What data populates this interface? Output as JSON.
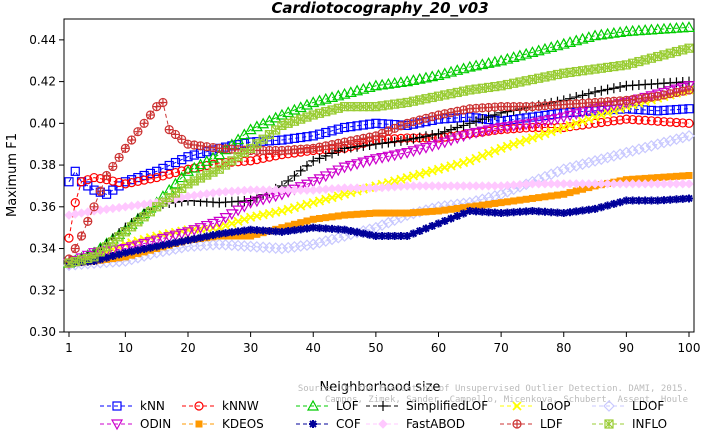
{
  "chart_data": {
    "type": "line",
    "title": "Cardiotocography_20_v03",
    "xlabel": "Neighborhood size",
    "ylabel": "Maximum F1",
    "xlim": [
      1,
      100
    ],
    "ylim": [
      0.3,
      0.45
    ],
    "xticks": [
      1,
      10,
      20,
      30,
      40,
      50,
      60,
      70,
      80,
      90,
      100
    ],
    "yticks": [
      0.3,
      0.32,
      0.34,
      0.36,
      0.38,
      0.4,
      0.42,
      0.44
    ],
    "ytick_labels": [
      "0.30",
      "0.32",
      "0.34",
      "0.36",
      "0.38",
      "0.40",
      "0.42",
      "0.44"
    ],
    "grid": false,
    "legend_position": "bottom",
    "watermark": [
      "Source: On the Evaluation of Unsupervised Outlier Detection. DAMI, 2015.",
      "Campos, Zimek, Sander, Campello, Micenkova, Schubert, Assent, Houle"
    ],
    "series": [
      {
        "name": "kNN",
        "color": "#0000ff",
        "marker": "square",
        "points": [
          [
            1,
            0.372
          ],
          [
            2,
            0.377
          ],
          [
            3,
            0.372
          ],
          [
            5,
            0.368
          ],
          [
            7,
            0.366
          ],
          [
            10,
            0.372
          ],
          [
            15,
            0.377
          ],
          [
            20,
            0.384
          ],
          [
            25,
            0.388
          ],
          [
            30,
            0.391
          ],
          [
            35,
            0.392
          ],
          [
            40,
            0.394
          ],
          [
            45,
            0.398
          ],
          [
            50,
            0.4
          ],
          [
            55,
            0.399
          ],
          [
            60,
            0.402
          ],
          [
            65,
            0.403
          ],
          [
            70,
            0.401
          ],
          [
            75,
            0.403
          ],
          [
            80,
            0.405
          ],
          [
            85,
            0.406
          ],
          [
            90,
            0.407
          ],
          [
            95,
            0.406
          ],
          [
            100,
            0.407
          ]
        ]
      },
      {
        "name": "kNNW",
        "color": "#ff0000",
        "marker": "circle",
        "points": [
          [
            1,
            0.345
          ],
          [
            2,
            0.362
          ],
          [
            3,
            0.372
          ],
          [
            5,
            0.374
          ],
          [
            7,
            0.373
          ],
          [
            10,
            0.371
          ],
          [
            15,
            0.374
          ],
          [
            20,
            0.378
          ],
          [
            25,
            0.381
          ],
          [
            30,
            0.382
          ],
          [
            35,
            0.385
          ],
          [
            40,
            0.387
          ],
          [
            45,
            0.388
          ],
          [
            50,
            0.392
          ],
          [
            55,
            0.393
          ],
          [
            60,
            0.393
          ],
          [
            65,
            0.395
          ],
          [
            70,
            0.397
          ],
          [
            75,
            0.398
          ],
          [
            80,
            0.398
          ],
          [
            85,
            0.4
          ],
          [
            90,
            0.402
          ],
          [
            95,
            0.401
          ],
          [
            100,
            0.4
          ]
        ]
      },
      {
        "name": "LOF",
        "color": "#00cc00",
        "marker": "triangle-up",
        "points": [
          [
            1,
            0.333
          ],
          [
            5,
            0.338
          ],
          [
            10,
            0.349
          ],
          [
            15,
            0.362
          ],
          [
            20,
            0.377
          ],
          [
            25,
            0.385
          ],
          [
            30,
            0.397
          ],
          [
            35,
            0.404
          ],
          [
            40,
            0.41
          ],
          [
            45,
            0.414
          ],
          [
            50,
            0.418
          ],
          [
            55,
            0.42
          ],
          [
            60,
            0.423
          ],
          [
            65,
            0.427
          ],
          [
            70,
            0.43
          ],
          [
            75,
            0.434
          ],
          [
            80,
            0.438
          ],
          [
            85,
            0.442
          ],
          [
            90,
            0.444
          ],
          [
            95,
            0.445
          ],
          [
            100,
            0.446
          ]
        ]
      },
      {
        "name": "SimplifiedLOF",
        "color": "#000000",
        "marker": "plus",
        "points": [
          [
            1,
            0.333
          ],
          [
            5,
            0.337
          ],
          [
            10,
            0.35
          ],
          [
            15,
            0.361
          ],
          [
            20,
            0.363
          ],
          [
            25,
            0.362
          ],
          [
            30,
            0.363
          ],
          [
            35,
            0.37
          ],
          [
            40,
            0.382
          ],
          [
            45,
            0.388
          ],
          [
            50,
            0.39
          ],
          [
            55,
            0.392
          ],
          [
            60,
            0.395
          ],
          [
            65,
            0.4
          ],
          [
            70,
            0.405
          ],
          [
            75,
            0.408
          ],
          [
            80,
            0.411
          ],
          [
            85,
            0.415
          ],
          [
            90,
            0.418
          ],
          [
            95,
            0.419
          ],
          [
            100,
            0.42
          ]
        ]
      },
      {
        "name": "LoOP",
        "color": "#ffff00",
        "marker": "cross",
        "points": [
          [
            1,
            0.333
          ],
          [
            5,
            0.336
          ],
          [
            10,
            0.342
          ],
          [
            15,
            0.346
          ],
          [
            20,
            0.349
          ],
          [
            25,
            0.35
          ],
          [
            30,
            0.355
          ],
          [
            35,
            0.358
          ],
          [
            40,
            0.362
          ],
          [
            45,
            0.366
          ],
          [
            50,
            0.37
          ],
          [
            55,
            0.374
          ],
          [
            60,
            0.378
          ],
          [
            65,
            0.382
          ],
          [
            70,
            0.388
          ],
          [
            75,
            0.393
          ],
          [
            80,
            0.398
          ],
          [
            85,
            0.403
          ],
          [
            90,
            0.408
          ],
          [
            95,
            0.412
          ],
          [
            100,
            0.416
          ]
        ]
      },
      {
        "name": "LDOF",
        "color": "#c8c8ff",
        "marker": "diamond",
        "points": [
          [
            1,
            0.332
          ],
          [
            5,
            0.333
          ],
          [
            10,
            0.334
          ],
          [
            15,
            0.338
          ],
          [
            20,
            0.341
          ],
          [
            25,
            0.342
          ],
          [
            30,
            0.341
          ],
          [
            35,
            0.34
          ],
          [
            40,
            0.342
          ],
          [
            45,
            0.346
          ],
          [
            50,
            0.35
          ],
          [
            55,
            0.356
          ],
          [
            60,
            0.36
          ],
          [
            65,
            0.362
          ],
          [
            70,
            0.366
          ],
          [
            75,
            0.372
          ],
          [
            80,
            0.378
          ],
          [
            85,
            0.382
          ],
          [
            90,
            0.386
          ],
          [
            95,
            0.39
          ],
          [
            100,
            0.394
          ]
        ]
      },
      {
        "name": "ODIN",
        "color": "#cc00cc",
        "marker": "triangle-down",
        "points": [
          [
            1,
            0.333
          ],
          [
            5,
            0.338
          ],
          [
            10,
            0.34
          ],
          [
            15,
            0.344
          ],
          [
            20,
            0.348
          ],
          [
            25,
            0.353
          ],
          [
            30,
            0.362
          ],
          [
            35,
            0.366
          ],
          [
            40,
            0.372
          ],
          [
            45,
            0.379
          ],
          [
            50,
            0.383
          ],
          [
            55,
            0.386
          ],
          [
            60,
            0.39
          ],
          [
            65,
            0.395
          ],
          [
            70,
            0.398
          ],
          [
            75,
            0.4
          ],
          [
            80,
            0.403
          ],
          [
            85,
            0.407
          ],
          [
            90,
            0.41
          ],
          [
            95,
            0.414
          ],
          [
            100,
            0.418
          ]
        ]
      },
      {
        "name": "KDEOS",
        "color": "#ff9900",
        "marker": "box-square",
        "points": [
          [
            1,
            0.333
          ],
          [
            5,
            0.334
          ],
          [
            10,
            0.336
          ],
          [
            15,
            0.34
          ],
          [
            20,
            0.344
          ],
          [
            25,
            0.346
          ],
          [
            30,
            0.346
          ],
          [
            35,
            0.35
          ],
          [
            40,
            0.354
          ],
          [
            45,
            0.356
          ],
          [
            50,
            0.357
          ],
          [
            55,
            0.357
          ],
          [
            60,
            0.358
          ],
          [
            65,
            0.36
          ],
          [
            70,
            0.362
          ],
          [
            75,
            0.364
          ],
          [
            80,
            0.366
          ],
          [
            85,
            0.37
          ],
          [
            90,
            0.373
          ],
          [
            95,
            0.374
          ],
          [
            100,
            0.375
          ]
        ]
      },
      {
        "name": "COF",
        "color": "#000099",
        "marker": "asterisk",
        "points": [
          [
            1,
            0.333
          ],
          [
            5,
            0.334
          ],
          [
            10,
            0.338
          ],
          [
            15,
            0.341
          ],
          [
            20,
            0.344
          ],
          [
            25,
            0.347
          ],
          [
            30,
            0.349
          ],
          [
            35,
            0.348
          ],
          [
            40,
            0.35
          ],
          [
            45,
            0.349
          ],
          [
            50,
            0.346
          ],
          [
            55,
            0.346
          ],
          [
            60,
            0.352
          ],
          [
            65,
            0.358
          ],
          [
            70,
            0.357
          ],
          [
            75,
            0.358
          ],
          [
            80,
            0.357
          ],
          [
            85,
            0.359
          ],
          [
            90,
            0.363
          ],
          [
            95,
            0.363
          ],
          [
            100,
            0.364
          ]
        ]
      },
      {
        "name": "FastABOD",
        "color": "#ffc8ff",
        "marker": "diamond-filled",
        "points": [
          [
            1,
            0.356
          ],
          [
            5,
            0.358
          ],
          [
            10,
            0.36
          ],
          [
            15,
            0.362
          ],
          [
            20,
            0.365
          ],
          [
            25,
            0.367
          ],
          [
            30,
            0.368
          ],
          [
            35,
            0.368
          ],
          [
            40,
            0.368
          ],
          [
            45,
            0.369
          ],
          [
            50,
            0.369
          ],
          [
            55,
            0.37
          ],
          [
            60,
            0.37
          ],
          [
            65,
            0.37
          ],
          [
            70,
            0.37
          ],
          [
            75,
            0.371
          ],
          [
            80,
            0.371
          ],
          [
            85,
            0.371
          ],
          [
            90,
            0.371
          ],
          [
            95,
            0.371
          ],
          [
            100,
            0.371
          ]
        ]
      },
      {
        "name": "LDF",
        "color": "#cc3333",
        "marker": "circle-plus",
        "points": [
          [
            1,
            0.335
          ],
          [
            2,
            0.34
          ],
          [
            3,
            0.346
          ],
          [
            5,
            0.36
          ],
          [
            7,
            0.375
          ],
          [
            10,
            0.388
          ],
          [
            12,
            0.396
          ],
          [
            13,
            0.4
          ],
          [
            15,
            0.408
          ],
          [
            16,
            0.41
          ],
          [
            17,
            0.397
          ],
          [
            20,
            0.39
          ],
          [
            25,
            0.388
          ],
          [
            30,
            0.387
          ],
          [
            35,
            0.387
          ],
          [
            40,
            0.388
          ],
          [
            45,
            0.391
          ],
          [
            50,
            0.394
          ],
          [
            55,
            0.4
          ],
          [
            60,
            0.404
          ],
          [
            65,
            0.407
          ],
          [
            70,
            0.408
          ],
          [
            75,
            0.408
          ],
          [
            80,
            0.409
          ],
          [
            85,
            0.41
          ],
          [
            90,
            0.411
          ],
          [
            95,
            0.413
          ],
          [
            100,
            0.416
          ]
        ]
      },
      {
        "name": "INFLO",
        "color": "#99cc33",
        "marker": "star-box",
        "points": [
          [
            1,
            0.333
          ],
          [
            5,
            0.336
          ],
          [
            10,
            0.348
          ],
          [
            15,
            0.36
          ],
          [
            20,
            0.371
          ],
          [
            25,
            0.378
          ],
          [
            30,
            0.388
          ],
          [
            35,
            0.399
          ],
          [
            40,
            0.404
          ],
          [
            45,
            0.408
          ],
          [
            50,
            0.408
          ],
          [
            55,
            0.41
          ],
          [
            60,
            0.413
          ],
          [
            65,
            0.416
          ],
          [
            70,
            0.418
          ],
          [
            75,
            0.421
          ],
          [
            80,
            0.424
          ],
          [
            85,
            0.426
          ],
          [
            90,
            0.428
          ],
          [
            95,
            0.432
          ],
          [
            100,
            0.436
          ]
        ]
      }
    ]
  }
}
